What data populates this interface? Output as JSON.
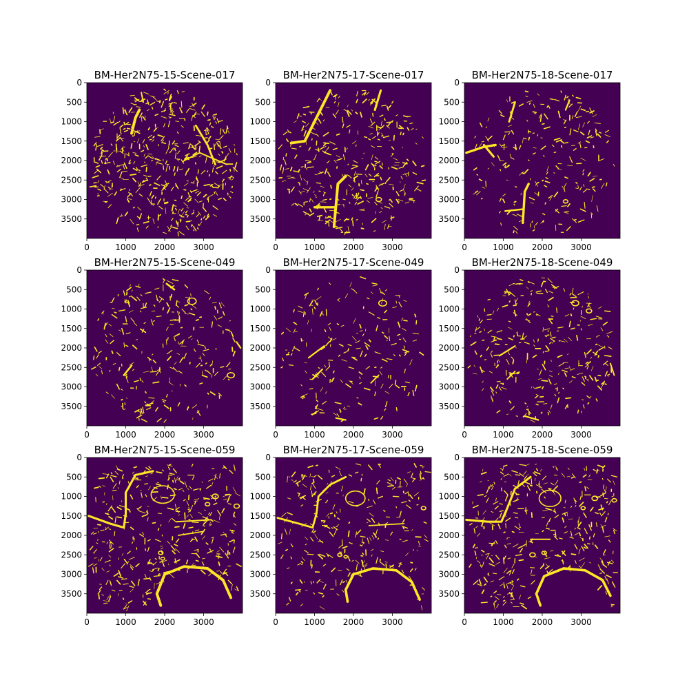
{
  "colors": {
    "background": "#440154",
    "foreground": "#fde725",
    "axis": "#000000"
  },
  "chart_data": [
    {
      "type": "heatmap",
      "title": "BM-Her2N75-15-Scene-017",
      "x_ticks": [
        "0",
        "1000",
        "2000",
        "3000"
      ],
      "y_ticks": [
        "0",
        "500",
        "1000",
        "1500",
        "2000",
        "2500",
        "3000",
        "3500"
      ],
      "xlim": [
        0,
        4000
      ],
      "ylim": [
        4000,
        0
      ],
      "colormap": "viridis",
      "values": "binary mask (0 = background, 1 = foreground)",
      "shape": "circle",
      "density": 0.95,
      "seed": 11,
      "features": [
        {
          "kind": "stroke",
          "points": [
            [
              1150,
              1300
            ],
            [
              1250,
              900
            ],
            [
              1350,
              700
            ]
          ],
          "width": 70
        },
        {
          "kind": "stroke",
          "points": [
            [
              2800,
              1100
            ],
            [
              3100,
              1600
            ],
            [
              3300,
              2100
            ]
          ],
          "width": 50
        },
        {
          "kind": "stroke",
          "points": [
            [
              2500,
              2000
            ],
            [
              2900,
              1800
            ],
            [
              3600,
              2100
            ]
          ],
          "width": 35
        },
        {
          "kind": "stroke",
          "points": [
            [
              1400,
              250
            ],
            [
              1450,
              500
            ]
          ],
          "width": 35
        }
      ]
    },
    {
      "type": "heatmap",
      "title": "BM-Her2N75-17-Scene-017",
      "x_ticks": [
        "0",
        "1000",
        "2000",
        "3000"
      ],
      "y_ticks": [
        "0",
        "500",
        "1000",
        "1500",
        "2000",
        "2500",
        "3000",
        "3500"
      ],
      "xlim": [
        0,
        4000
      ],
      "ylim": [
        4000,
        0
      ],
      "colormap": "viridis",
      "values": "binary mask (0 = background, 1 = foreground)",
      "shape": "circle",
      "density": 0.7,
      "seed": 23,
      "features": [
        {
          "kind": "stroke",
          "points": [
            [
              400,
              1550
            ],
            [
              750,
              1500
            ],
            [
              1050,
              900
            ],
            [
              1400,
              200
            ]
          ],
          "width": 70
        },
        {
          "kind": "stroke",
          "points": [
            [
              1500,
              3700
            ],
            [
              1600,
              2600
            ],
            [
              1800,
              2400
            ]
          ],
          "width": 70
        },
        {
          "kind": "stroke",
          "points": [
            [
              1000,
              3200
            ],
            [
              1500,
              3200
            ]
          ],
          "width": 60
        },
        {
          "kind": "stroke",
          "points": [
            [
              2550,
              700
            ],
            [
              2700,
              200
            ]
          ],
          "width": 55
        },
        {
          "kind": "ring",
          "cx": 2650,
          "cy": 3000,
          "r": 70
        }
      ]
    },
    {
      "type": "heatmap",
      "title": "BM-Her2N75-18-Scene-017",
      "x_ticks": [
        "0",
        "1000",
        "2000",
        "3000"
      ],
      "y_ticks": [
        "0",
        "500",
        "1000",
        "1500",
        "2000",
        "2500",
        "3000",
        "3500"
      ],
      "xlim": [
        0,
        4000
      ],
      "ylim": [
        4000,
        0
      ],
      "colormap": "viridis",
      "values": "binary mask (0 = background, 1 = foreground)",
      "shape": "circle",
      "density": 0.45,
      "seed": 37,
      "features": [
        {
          "kind": "stroke",
          "points": [
            [
              50,
              1800
            ],
            [
              500,
              1650
            ],
            [
              800,
              1600
            ]
          ],
          "width": 60
        },
        {
          "kind": "stroke",
          "points": [
            [
              500,
              1600
            ],
            [
              750,
              1900
            ]
          ],
          "width": 55
        },
        {
          "kind": "stroke",
          "points": [
            [
              1150,
              1000
            ],
            [
              1300,
              500
            ]
          ],
          "width": 50
        },
        {
          "kind": "stroke",
          "points": [
            [
              1500,
              3600
            ],
            [
              1550,
              2800
            ],
            [
              1650,
              2600
            ]
          ],
          "width": 60
        },
        {
          "kind": "stroke",
          "points": [
            [
              1050,
              3300
            ],
            [
              1500,
              3250
            ]
          ],
          "width": 45
        },
        {
          "kind": "stroke",
          "points": [
            [
              2600,
              700
            ],
            [
              2700,
              450
            ]
          ],
          "width": 40
        },
        {
          "kind": "ring",
          "cx": 2600,
          "cy": 3050,
          "r": 60
        }
      ]
    },
    {
      "type": "heatmap",
      "title": "BM-Her2N75-15-Scene-049",
      "x_ticks": [
        "0",
        "1000",
        "2000",
        "3000"
      ],
      "y_ticks": [
        "0",
        "500",
        "1000",
        "1500",
        "2000",
        "2500",
        "3000",
        "3500"
      ],
      "xlim": [
        0,
        4000
      ],
      "ylim": [
        4000,
        0
      ],
      "colormap": "viridis",
      "values": "binary mask (0 = background, 1 = foreground)",
      "shape": "circle",
      "density": 0.5,
      "seed": 41,
      "features": [
        {
          "kind": "ring",
          "cx": 2700,
          "cy": 800,
          "r": 110
        },
        {
          "kind": "stroke",
          "points": [
            [
              2050,
              350
            ],
            [
              2250,
              500
            ]
          ],
          "width": 45
        },
        {
          "kind": "stroke",
          "points": [
            [
              950,
              2700
            ],
            [
              1150,
              2450
            ]
          ],
          "width": 45
        },
        {
          "kind": "ring",
          "cx": 3700,
          "cy": 2700,
          "r": 90
        },
        {
          "kind": "stroke",
          "points": [
            [
              3850,
              1850
            ],
            [
              3950,
              2000
            ]
          ],
          "width": 40
        }
      ]
    },
    {
      "type": "heatmap",
      "title": "BM-Her2N75-17-Scene-049",
      "x_ticks": [
        "0",
        "1000",
        "2000",
        "3000"
      ],
      "y_ticks": [
        "0",
        "500",
        "1000",
        "1500",
        "2000",
        "2500",
        "3000",
        "3500"
      ],
      "xlim": [
        0,
        4000
      ],
      "ylim": [
        4000,
        0
      ],
      "colormap": "viridis",
      "values": "binary mask (0 = background, 1 = foreground)",
      "shape": "circle",
      "density": 0.4,
      "seed": 53,
      "features": [
        {
          "kind": "ring",
          "cx": 2750,
          "cy": 850,
          "r": 100
        },
        {
          "kind": "stroke",
          "points": [
            [
              850,
              2250
            ],
            [
              1250,
              1950
            ]
          ],
          "width": 40
        },
        {
          "kind": "stroke",
          "points": [
            [
              950,
              2800
            ],
            [
              1200,
              2550
            ]
          ],
          "width": 40
        },
        {
          "kind": "stroke",
          "points": [
            [
              2450,
              2900
            ],
            [
              2650,
              2700
            ]
          ],
          "width": 35
        },
        {
          "kind": "stroke",
          "points": [
            [
              1550,
              3800
            ],
            [
              1800,
              3850
            ]
          ],
          "width": 40
        }
      ]
    },
    {
      "type": "heatmap",
      "title": "BM-Her2N75-18-Scene-049",
      "x_ticks": [
        "0",
        "1000",
        "2000",
        "3000"
      ],
      "y_ticks": [
        "0",
        "500",
        "1000",
        "1500",
        "2000",
        "2500",
        "3000",
        "3500"
      ],
      "xlim": [
        0,
        4000
      ],
      "ylim": [
        4000,
        0
      ],
      "colormap": "viridis",
      "values": "binary mask (0 = background, 1 = foreground)",
      "shape": "circle",
      "density": 0.6,
      "seed": 67,
      "features": [
        {
          "kind": "ring",
          "cx": 2850,
          "cy": 850,
          "r": 90
        },
        {
          "kind": "ring",
          "cx": 3200,
          "cy": 1050,
          "r": 70
        },
        {
          "kind": "stroke",
          "points": [
            [
              900,
              2200
            ],
            [
              1300,
              1950
            ]
          ],
          "width": 40
        },
        {
          "kind": "stroke",
          "points": [
            [
              1100,
              2800
            ],
            [
              1300,
              2600
            ]
          ],
          "width": 35
        },
        {
          "kind": "stroke",
          "points": [
            [
              3750,
              2400
            ],
            [
              3850,
              2700
            ]
          ],
          "width": 35
        },
        {
          "kind": "stroke",
          "points": [
            [
              1550,
              3750
            ],
            [
              1900,
              3850
            ]
          ],
          "width": 40
        }
      ]
    },
    {
      "type": "heatmap",
      "title": "BM-Her2N75-15-Scene-059",
      "x_ticks": [
        "0",
        "1000",
        "2000",
        "3000"
      ],
      "y_ticks": [
        "0",
        "500",
        "1000",
        "1500",
        "2000",
        "2500",
        "3000",
        "3500"
      ],
      "xlim": [
        0,
        4000
      ],
      "ylim": [
        4000,
        0
      ],
      "colormap": "viridis",
      "values": "binary mask (0 = background, 1 = foreground)",
      "shape": "tissue",
      "density": 0.75,
      "seed": 71,
      "features": [
        {
          "kind": "stroke",
          "points": [
            [
              50,
              1500
            ],
            [
              600,
              1700
            ],
            [
              950,
              1800
            ],
            [
              1000,
              1450
            ],
            [
              1000,
              900
            ],
            [
              1250,
              450
            ],
            [
              1700,
              350
            ]
          ],
          "width": 55
        },
        {
          "kind": "ring",
          "cx": 1950,
          "cy": 950,
          "r": 300
        },
        {
          "kind": "stroke",
          "points": [
            [
              1900,
              3800
            ],
            [
              1800,
              3500
            ],
            [
              2000,
              3000
            ],
            [
              2500,
              2800
            ],
            [
              3100,
              2850
            ],
            [
              3500,
              3150
            ],
            [
              3700,
              3600
            ]
          ],
          "width": 70
        },
        {
          "kind": "stroke",
          "points": [
            [
              2300,
              1650
            ],
            [
              3200,
              1600
            ]
          ],
          "width": 35
        },
        {
          "kind": "stroke",
          "points": [
            [
              2350,
              2000
            ],
            [
              3000,
              1900
            ]
          ],
          "width": 30
        },
        {
          "kind": "ring",
          "cx": 1900,
          "cy": 2450,
          "r": 60
        },
        {
          "kind": "ring",
          "cx": 1950,
          "cy": 2600,
          "r": 50
        },
        {
          "kind": "ring",
          "cx": 3300,
          "cy": 1000,
          "r": 80
        },
        {
          "kind": "ring",
          "cx": 3850,
          "cy": 1250,
          "r": 70
        },
        {
          "kind": "ring",
          "cx": 3100,
          "cy": 1200,
          "r": 60
        }
      ]
    },
    {
      "type": "heatmap",
      "title": "BM-Her2N75-17-Scene-059",
      "x_ticks": [
        "0",
        "1000",
        "2000",
        "3000"
      ],
      "y_ticks": [
        "0",
        "500",
        "1000",
        "1500",
        "2000",
        "2500",
        "3000",
        "3500"
      ],
      "xlim": [
        0,
        4000
      ],
      "ylim": [
        4000,
        0
      ],
      "colormap": "viridis",
      "values": "binary mask (0 = background, 1 = foreground)",
      "shape": "tissue",
      "density": 0.55,
      "seed": 83,
      "features": [
        {
          "kind": "stroke",
          "points": [
            [
              50,
              1550
            ],
            [
              600,
              1700
            ],
            [
              950,
              1800
            ],
            [
              1050,
              1450
            ],
            [
              1100,
              1000
            ],
            [
              1400,
              700
            ],
            [
              1800,
              500
            ]
          ],
          "width": 50
        },
        {
          "kind": "ring",
          "cx": 2050,
          "cy": 1050,
          "r": 250
        },
        {
          "kind": "stroke",
          "points": [
            [
              1850,
              3700
            ],
            [
              1800,
              3400
            ],
            [
              2000,
              3000
            ],
            [
              2500,
              2850
            ],
            [
              3100,
              2900
            ],
            [
              3500,
              3200
            ],
            [
              3700,
              3650
            ]
          ],
          "width": 65
        },
        {
          "kind": "stroke",
          "points": [
            [
              2400,
              1750
            ],
            [
              3300,
              1700
            ]
          ],
          "width": 30
        },
        {
          "kind": "ring",
          "cx": 1650,
          "cy": 2500,
          "r": 55
        },
        {
          "kind": "ring",
          "cx": 1800,
          "cy": 2550,
          "r": 45
        },
        {
          "kind": "ring",
          "cx": 3800,
          "cy": 1300,
          "r": 60
        }
      ]
    },
    {
      "type": "heatmap",
      "title": "BM-Her2N75-18-Scene-059",
      "x_ticks": [
        "0",
        "1000",
        "2000",
        "3000"
      ],
      "y_ticks": [
        "0",
        "500",
        "1000",
        "1500",
        "2000",
        "2500",
        "3000",
        "3500"
      ],
      "xlim": [
        0,
        4000
      ],
      "ylim": [
        4000,
        0
      ],
      "colormap": "viridis",
      "values": "binary mask (0 = background, 1 = foreground)",
      "shape": "tissue",
      "density": 0.7,
      "seed": 97,
      "features": [
        {
          "kind": "stroke",
          "points": [
            [
              50,
              1600
            ],
            [
              600,
              1650
            ],
            [
              950,
              1650
            ],
            [
              1100,
              1300
            ],
            [
              1300,
              800
            ],
            [
              1700,
              500
            ]
          ],
          "width": 55
        },
        {
          "kind": "ring",
          "cx": 2200,
          "cy": 1050,
          "r": 280
        },
        {
          "kind": "stroke",
          "points": [
            [
              1950,
              3800
            ],
            [
              1850,
              3500
            ],
            [
              2050,
              3050
            ],
            [
              2550,
              2850
            ],
            [
              3100,
              2900
            ],
            [
              3550,
              3150
            ],
            [
              3750,
              3550
            ]
          ],
          "width": 65
        },
        {
          "kind": "stroke",
          "points": [
            [
              1700,
              2100
            ],
            [
              2200,
              2100
            ]
          ],
          "width": 35
        },
        {
          "kind": "ring",
          "cx": 1750,
          "cy": 2500,
          "r": 70
        },
        {
          "kind": "ring",
          "cx": 2050,
          "cy": 2450,
          "r": 60
        },
        {
          "kind": "ring",
          "cx": 3350,
          "cy": 1050,
          "r": 75
        },
        {
          "kind": "ring",
          "cx": 3850,
          "cy": 1100,
          "r": 60
        },
        {
          "kind": "ring",
          "cx": 3050,
          "cy": 1300,
          "r": 55
        }
      ]
    }
  ]
}
